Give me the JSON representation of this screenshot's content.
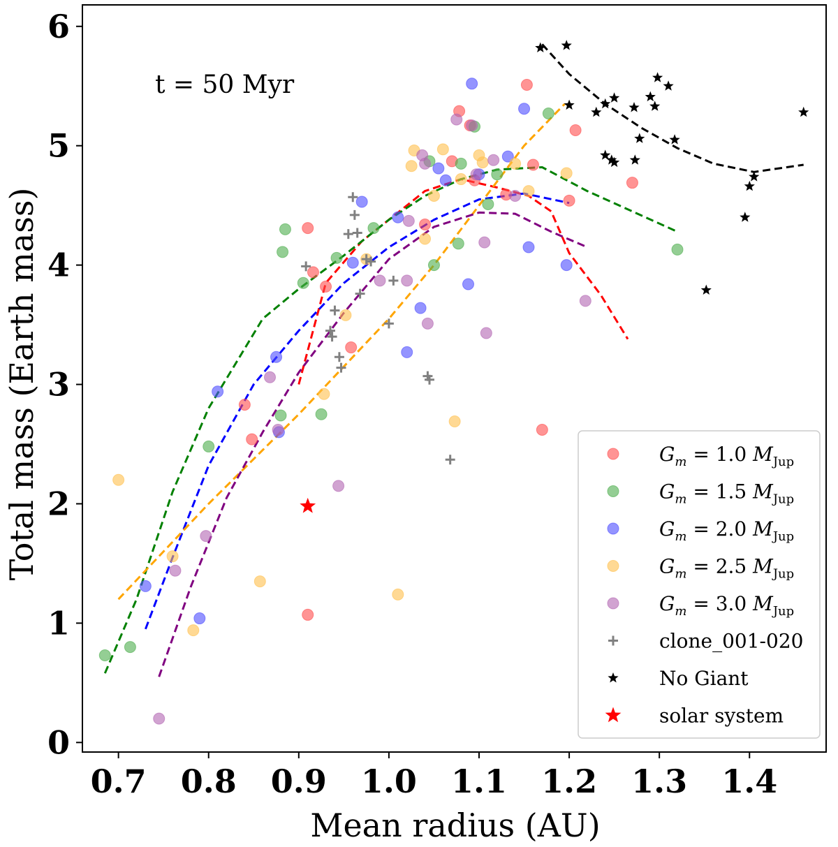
{
  "chart_data": {
    "type": "scatter",
    "title": "",
    "annotation": "t = 50 Myr",
    "xlabel": "Mean radius (AU)",
    "ylabel": "Total mass (Earth mass)",
    "xlim": [
      0.66,
      1.485
    ],
    "ylim": [
      -0.08,
      6.18
    ],
    "xticks": [
      0.7,
      0.8,
      0.9,
      1.0,
      1.1,
      1.2,
      1.3,
      1.4
    ],
    "xtick_labels": [
      "0.7",
      "0.8",
      "0.9",
      "1.0",
      "1.1",
      "1.2",
      "1.3",
      "1.4"
    ],
    "yticks": [
      0,
      1,
      2,
      3,
      4,
      5,
      6
    ],
    "ytick_labels": [
      "0",
      "1",
      "2",
      "3",
      "4",
      "5",
      "6"
    ],
    "legend_position": "lower-right",
    "series": [
      {
        "name": "G_m = 1.0 M_Jup",
        "legend_main": "G",
        "legend_sub1": "m",
        "legend_mid": " = 1.0 ",
        "legend_m": "M",
        "legend_sub2": "Jup",
        "marker": "circle",
        "color": "#ff4d4d",
        "fit_color": "#ff0000",
        "points": [
          [
            0.91,
            4.31
          ],
          [
            0.916,
            3.94
          ],
          [
            0.93,
            3.82
          ],
          [
            0.84,
            2.83
          ],
          [
            0.848,
            2.54
          ],
          [
            0.91,
            1.07
          ],
          [
            0.958,
            3.31
          ],
          [
            1.04,
            4.34
          ],
          [
            1.07,
            4.87
          ],
          [
            1.078,
            5.29
          ],
          [
            1.09,
            5.17
          ],
          [
            1.095,
            4.71
          ],
          [
            1.13,
            4.59
          ],
          [
            1.153,
            5.51
          ],
          [
            1.16,
            4.84
          ],
          [
            1.2,
            4.54
          ],
          [
            1.207,
            5.13
          ],
          [
            1.17,
            2.62
          ],
          [
            1.27,
            4.69
          ]
        ],
        "fit": [
          [
            0.9,
            3.0
          ],
          [
            0.93,
            3.85
          ],
          [
            0.97,
            4.2
          ],
          [
            1.0,
            4.38
          ],
          [
            1.04,
            4.62
          ],
          [
            1.08,
            4.72
          ],
          [
            1.12,
            4.65
          ],
          [
            1.155,
            4.58
          ],
          [
            1.18,
            4.45
          ],
          [
            1.2,
            4.1
          ],
          [
            1.235,
            3.75
          ],
          [
            1.265,
            3.38
          ]
        ]
      },
      {
        "name": "G_m = 1.5 M_Jup",
        "legend_main": "G",
        "legend_sub1": "m",
        "legend_mid": " = 1.5 ",
        "legend_m": "M",
        "legend_sub2": "Jup",
        "marker": "circle",
        "color": "#4cae4c",
        "fit_color": "#008000",
        "points": [
          [
            0.685,
            0.73
          ],
          [
            0.713,
            0.8
          ],
          [
            0.8,
            2.48
          ],
          [
            0.88,
            2.74
          ],
          [
            0.882,
            4.11
          ],
          [
            0.885,
            4.3
          ],
          [
            0.905,
            3.85
          ],
          [
            0.925,
            2.75
          ],
          [
            0.942,
            4.06
          ],
          [
            0.983,
            4.31
          ],
          [
            1.045,
            4.87
          ],
          [
            1.05,
            4.0
          ],
          [
            1.077,
            4.18
          ],
          [
            1.08,
            4.85
          ],
          [
            1.095,
            5.16
          ],
          [
            1.11,
            4.51
          ],
          [
            1.12,
            4.76
          ],
          [
            1.177,
            5.27
          ],
          [
            1.32,
            4.13
          ]
        ],
        "fit": [
          [
            0.685,
            0.58
          ],
          [
            0.72,
            1.2
          ],
          [
            0.76,
            2.1
          ],
          [
            0.8,
            2.8
          ],
          [
            0.86,
            3.55
          ],
          [
            0.9,
            3.8
          ],
          [
            0.95,
            4.08
          ],
          [
            1.0,
            4.38
          ],
          [
            1.04,
            4.58
          ],
          [
            1.08,
            4.72
          ],
          [
            1.12,
            4.8
          ],
          [
            1.17,
            4.82
          ],
          [
            1.22,
            4.62
          ],
          [
            1.27,
            4.45
          ],
          [
            1.32,
            4.28
          ]
        ]
      },
      {
        "name": "G_m = 2.0 M_Jup",
        "legend_main": "G",
        "legend_sub1": "m",
        "legend_mid": " = 2.0 ",
        "legend_m": "M",
        "legend_sub2": "Jup",
        "marker": "circle",
        "color": "#4d4dff",
        "fit_color": "#0000ff",
        "points": [
          [
            0.73,
            1.31
          ],
          [
            0.79,
            1.04
          ],
          [
            0.81,
            2.94
          ],
          [
            0.875,
            3.23
          ],
          [
            0.878,
            2.6
          ],
          [
            0.96,
            4.02
          ],
          [
            0.97,
            4.53
          ],
          [
            1.01,
            4.4
          ],
          [
            1.02,
            3.27
          ],
          [
            1.035,
            3.64
          ],
          [
            1.055,
            4.81
          ],
          [
            1.063,
            4.71
          ],
          [
            1.088,
            3.84
          ],
          [
            1.092,
            5.52
          ],
          [
            1.1,
            4.76
          ],
          [
            1.132,
            4.91
          ],
          [
            1.15,
            5.31
          ],
          [
            1.155,
            4.15
          ],
          [
            1.197,
            4.0
          ]
        ],
        "fit": [
          [
            0.73,
            0.95
          ],
          [
            0.76,
            1.55
          ],
          [
            0.8,
            2.32
          ],
          [
            0.85,
            3.0
          ],
          [
            0.9,
            3.45
          ],
          [
            0.95,
            3.85
          ],
          [
            1.0,
            4.15
          ],
          [
            1.05,
            4.38
          ],
          [
            1.1,
            4.55
          ],
          [
            1.15,
            4.6
          ],
          [
            1.2,
            4.52
          ]
        ]
      },
      {
        "name": "G_m = 2.5 M_Jup",
        "legend_main": "G",
        "legend_sub1": "m",
        "legend_mid": " = 2.5 ",
        "legend_m": "M",
        "legend_sub2": "Jup",
        "marker": "circle",
        "color": "#ffc04d",
        "fit_color": "#ffa500",
        "points": [
          [
            0.7,
            2.2
          ],
          [
            0.76,
            1.56
          ],
          [
            0.783,
            0.94
          ],
          [
            0.857,
            1.35
          ],
          [
            0.928,
            2.92
          ],
          [
            0.952,
            3.58
          ],
          [
            0.975,
            4.05
          ],
          [
            1.01,
            1.24
          ],
          [
            1.025,
            4.83
          ],
          [
            1.028,
            4.96
          ],
          [
            1.04,
            4.22
          ],
          [
            1.05,
            4.58
          ],
          [
            1.06,
            4.97
          ],
          [
            1.073,
            2.69
          ],
          [
            1.08,
            4.72
          ],
          [
            1.1,
            4.92
          ],
          [
            1.104,
            4.86
          ],
          [
            1.14,
            4.85
          ],
          [
            1.155,
            4.62
          ],
          [
            1.197,
            4.77
          ]
        ],
        "fit": [
          [
            0.7,
            1.2
          ],
          [
            0.8,
            2.0
          ],
          [
            0.9,
            2.75
          ],
          [
            1.0,
            3.55
          ],
          [
            1.05,
            4.0
          ],
          [
            1.1,
            4.5
          ],
          [
            1.15,
            5.0
          ],
          [
            1.195,
            5.35
          ]
        ]
      },
      {
        "name": "G_m = 3.0 M_Jup",
        "legend_main": "G",
        "legend_sub1": "m",
        "legend_mid": " = 3.0 ",
        "legend_m": "M",
        "legend_sub2": "Jup",
        "marker": "circle",
        "color": "#b366b3",
        "fit_color": "#800080",
        "points": [
          [
            0.745,
            0.2
          ],
          [
            0.763,
            1.44
          ],
          [
            0.797,
            1.73
          ],
          [
            0.868,
            3.06
          ],
          [
            0.877,
            2.62
          ],
          [
            0.944,
            2.15
          ],
          [
            0.99,
            3.87
          ],
          [
            1.02,
            3.87
          ],
          [
            1.022,
            4.37
          ],
          [
            1.037,
            4.92
          ],
          [
            1.04,
            4.85
          ],
          [
            1.043,
            3.51
          ],
          [
            1.075,
            5.22
          ],
          [
            1.092,
            5.17
          ],
          [
            1.097,
            4.76
          ],
          [
            1.106,
            4.19
          ],
          [
            1.108,
            3.43
          ],
          [
            1.116,
            4.88
          ],
          [
            1.14,
            4.58
          ],
          [
            1.218,
            3.7
          ]
        ],
        "fit": [
          [
            0.745,
            0.55
          ],
          [
            0.78,
            1.3
          ],
          [
            0.82,
            2.05
          ],
          [
            0.86,
            2.6
          ],
          [
            0.9,
            3.1
          ],
          [
            0.95,
            3.6
          ],
          [
            1.0,
            4.05
          ],
          [
            1.05,
            4.32
          ],
          [
            1.1,
            4.44
          ],
          [
            1.14,
            4.43
          ],
          [
            1.18,
            4.28
          ],
          [
            1.22,
            4.15
          ]
        ]
      },
      {
        "name": "clone_001-020",
        "legend_text": "clone_001-020",
        "marker": "plus",
        "color": "#808080",
        "points": [
          [
            0.908,
            3.99
          ],
          [
            0.935,
            3.45
          ],
          [
            0.937,
            3.4
          ],
          [
            0.94,
            3.62
          ],
          [
            0.945,
            3.23
          ],
          [
            0.947,
            3.14
          ],
          [
            0.955,
            4.26
          ],
          [
            0.96,
            4.57
          ],
          [
            0.962,
            4.42
          ],
          [
            0.965,
            4.27
          ],
          [
            0.968,
            3.76
          ],
          [
            0.975,
            4.05
          ],
          [
            0.98,
            4.03
          ],
          [
            1.005,
            3.87
          ],
          [
            1.0,
            3.51
          ],
          [
            1.043,
            3.07
          ],
          [
            1.045,
            3.04
          ],
          [
            1.068,
            2.37
          ]
        ]
      },
      {
        "name": "No Giant",
        "legend_text": "No Giant",
        "marker": "star",
        "color": "#000000",
        "fit_color": "#000000",
        "points": [
          [
            1.168,
            5.82
          ],
          [
            1.197,
            5.84
          ],
          [
            1.2,
            5.34
          ],
          [
            1.23,
            5.28
          ],
          [
            1.24,
            5.35
          ],
          [
            1.24,
            4.92
          ],
          [
            1.247,
            4.88
          ],
          [
            1.25,
            5.4
          ],
          [
            1.25,
            4.86
          ],
          [
            1.272,
            5.32
          ],
          [
            1.273,
            4.88
          ],
          [
            1.278,
            5.06
          ],
          [
            1.29,
            5.41
          ],
          [
            1.295,
            5.33
          ],
          [
            1.298,
            5.57
          ],
          [
            1.31,
            5.5
          ],
          [
            1.317,
            5.05
          ],
          [
            1.352,
            3.79
          ],
          [
            1.395,
            4.4
          ],
          [
            1.4,
            4.66
          ],
          [
            1.405,
            4.74
          ],
          [
            1.46,
            5.28
          ]
        ],
        "fit": [
          [
            1.17,
            5.85
          ],
          [
            1.2,
            5.6
          ],
          [
            1.24,
            5.35
          ],
          [
            1.28,
            5.15
          ],
          [
            1.32,
            4.98
          ],
          [
            1.36,
            4.85
          ],
          [
            1.405,
            4.78
          ],
          [
            1.46,
            4.84
          ]
        ]
      },
      {
        "name": "solar system",
        "legend_text": "solar system",
        "marker": "star",
        "color": "#ff0000",
        "points": [
          [
            0.91,
            1.98
          ]
        ]
      }
    ]
  }
}
